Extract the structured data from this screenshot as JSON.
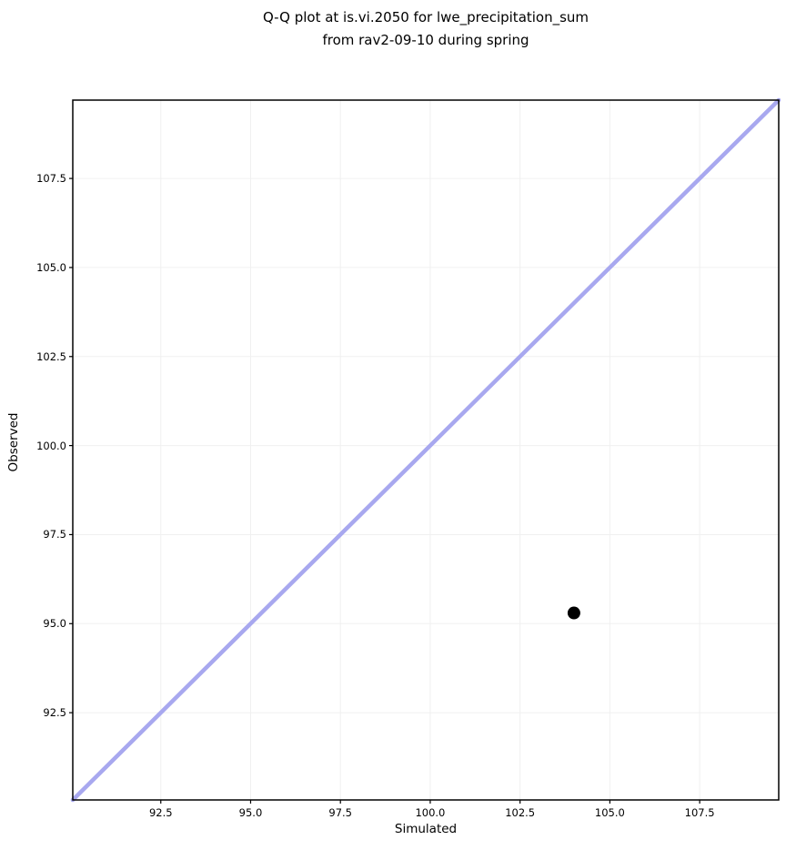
{
  "chart_data": {
    "type": "scatter",
    "title_lines": [
      "Q-Q plot at is.vi.2050 for lwe_precipitation_sum",
      "from rav2-09-10 during spring"
    ],
    "xlabel": "Simulated",
    "ylabel": "Observed",
    "xlim": [
      90.05,
      109.7
    ],
    "ylim": [
      90.05,
      109.7
    ],
    "xticks": [
      92.5,
      95.0,
      97.5,
      100.0,
      102.5,
      105.0,
      107.5
    ],
    "yticks": [
      92.5,
      95.0,
      97.5,
      100.0,
      102.5,
      105.0,
      107.5
    ],
    "grid": true,
    "grid_color": "#f0f0f0",
    "points": [
      {
        "x": 104.0,
        "y": 95.3
      }
    ],
    "point_color": "#000000",
    "point_radius": 7,
    "identity_line": {
      "from": 90.05,
      "to": 109.7,
      "color": "#a8a8ef",
      "width": 4.5
    },
    "frame_color": "#000000",
    "tick_color": "#000000"
  }
}
